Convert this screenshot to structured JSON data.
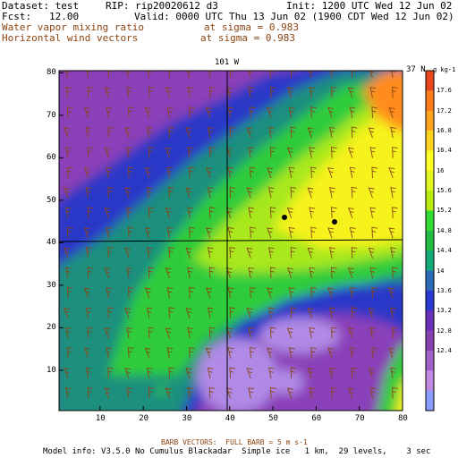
{
  "header": {
    "dataset": "Dataset: test",
    "rip": "RIP: rip20020612 d3",
    "init": "Init: 1200 UTC Wed 12 Jun 02",
    "fcst": "Fcst:   12.00",
    "valid": "Valid: 0000 UTC Thu 13 Jun 02 (1900 CDT Wed 12 Jun 02)",
    "field1": "Water vapor mixing ratio",
    "field1_level": "at sigma = 0.983",
    "field2": "Horizontal wind vectors",
    "field2_level": "at sigma = 0.983"
  },
  "map": {
    "top_label": "101 W",
    "right_label": "37 N",
    "x_ticks": [
      "10",
      "20",
      "30",
      "40",
      "50",
      "60",
      "70",
      "80"
    ],
    "y_ticks": [
      "10",
      "20",
      "30",
      "40",
      "50",
      "60",
      "70",
      "80"
    ],
    "colorbar_unit": "g kg-1",
    "colorbar_labels": [
      "17.6",
      "17.2",
      "16.8",
      "16.4",
      "16",
      "15.6",
      "15.2",
      "14.8",
      "14.4",
      "14",
      "13.6",
      "13.2",
      "12.8",
      "12.4"
    ],
    "colorbar_colors": [
      "#e8461e",
      "#ff7a1a",
      "#ffa31f",
      "#ffd21e",
      "#ffff22",
      "#e2f51c",
      "#b6ea10",
      "#33dd33",
      "#22bb44",
      "#14aa7a",
      "#2a6ab8",
      "#2a3ad0",
      "#6a30b8",
      "#8840b0",
      "#a060c8",
      "#c08ae0",
      "#8a9cff"
    ],
    "colors": {
      "purple": "#8a40b8",
      "blue": "#2c38c8",
      "teal": "#1a8f7e",
      "green": "#2fcc3a",
      "lime": "#a8e81a",
      "yellow": "#f6f21c",
      "orange": "#ff8c1a",
      "lavender": "#b08ae6",
      "barb": "#8b4513"
    }
  },
  "footer": {
    "barb_note": "BARB VECTORS:  FULL BARB = 5 m s-1",
    "model_info": "Model info: V3.5.0 No Cumulus Blackadar  Simple ice   1 km,  29 levels,    3 sec"
  }
}
